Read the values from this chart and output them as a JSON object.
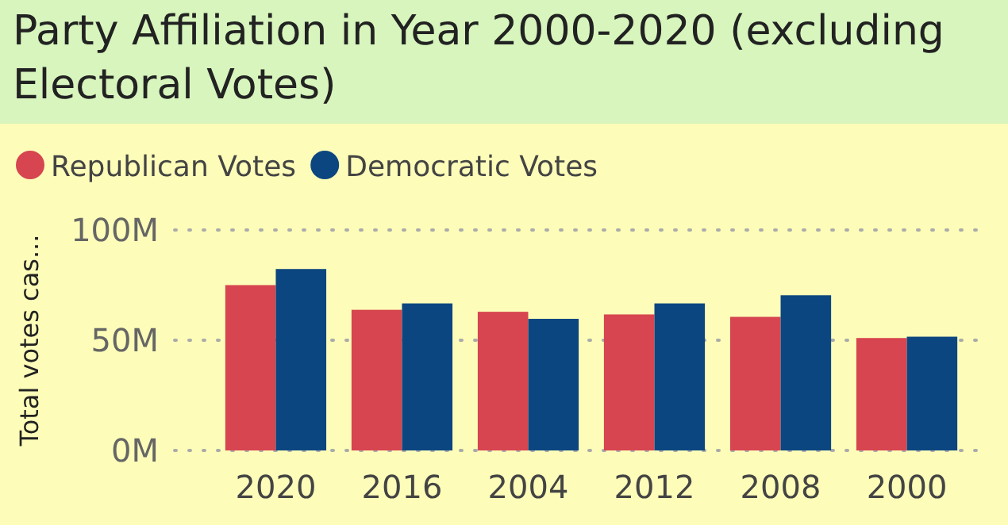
{
  "chart_data": {
    "type": "bar",
    "title": "Party Affiliation in Year 2000-2020 (excluding Electoral Votes)",
    "ylabel": "Total votes cas...",
    "categories": [
      "2020",
      "2016",
      "2004",
      "2012",
      "2008",
      "2000"
    ],
    "series": [
      {
        "name": "Republican Votes",
        "color": "#d64550",
        "values": [
          75,
          63.8,
          62.9,
          61.7,
          60.6,
          51
        ]
      },
      {
        "name": "Democratic Votes",
        "color": "#0c4680",
        "values": [
          82.3,
          66.7,
          59.7,
          66.7,
          70.4,
          51.6
        ]
      }
    ],
    "ylim": [
      0,
      100
    ],
    "yticks": [
      {
        "value": 0,
        "label": "0M"
      },
      {
        "value": 50,
        "label": "50M"
      },
      {
        "value": 100,
        "label": "100M"
      }
    ],
    "grid": "y",
    "legend": "top left"
  }
}
